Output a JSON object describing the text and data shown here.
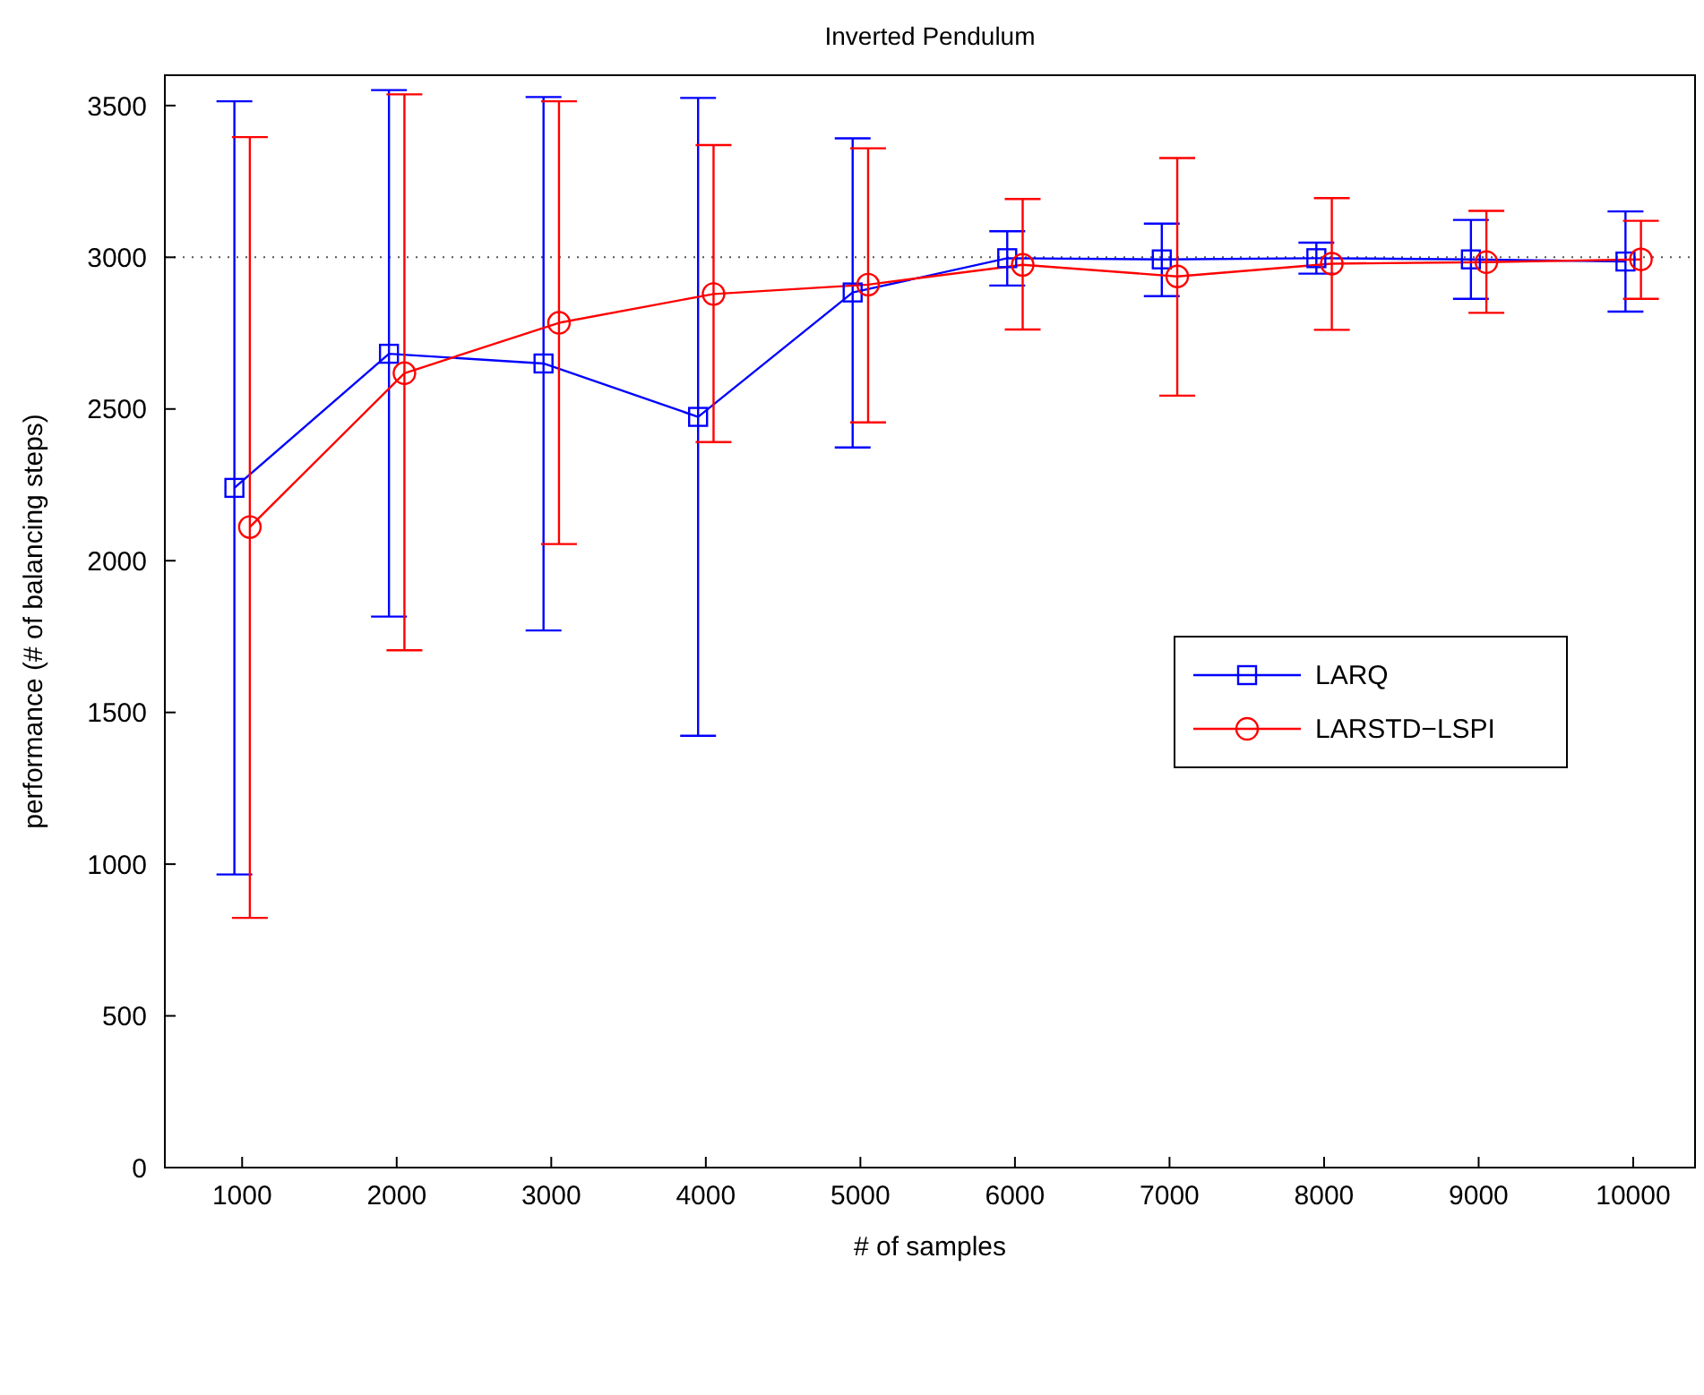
{
  "chart_data": {
    "type": "line",
    "title": "Inverted Pendulum",
    "xlabel": "# of samples",
    "ylabel": "performance (# of balancing steps)",
    "xlim": [
      500,
      10400
    ],
    "xticks": [
      1000,
      2000,
      3000,
      4000,
      5000,
      6000,
      7000,
      8000,
      9000,
      10000
    ],
    "ylim": [
      0,
      3600
    ],
    "yticks": [
      0,
      500,
      1000,
      1500,
      2000,
      2500,
      3000,
      3500
    ],
    "grid": false,
    "legend": "right",
    "line_style": "solid",
    "ref_lines": [
      {
        "axis": "y",
        "value": 3000,
        "color": "#555555",
        "line_style": "dotted"
      }
    ],
    "series": [
      {
        "name": "LARQ",
        "color": "#0000ff",
        "marker": "square",
        "x": [
          950,
          1950,
          2950,
          3950,
          4950,
          5950,
          6950,
          7950,
          8950,
          9950
        ],
        "values": [
          2240,
          2682,
          2650,
          2474,
          2884,
          2997,
          2993,
          2997,
          2993,
          2986
        ],
        "errors": [
          [
            966,
            3514
          ],
          [
            1816,
            3551
          ],
          [
            1770,
            3528
          ],
          [
            1423,
            3525
          ],
          [
            2373,
            3392
          ],
          [
            2907,
            3086
          ],
          [
            2872,
            3111
          ],
          [
            2946,
            3048
          ],
          [
            2863,
            3123
          ],
          [
            2821,
            3151
          ]
        ]
      },
      {
        "name": "LARSTD−LSPI",
        "color": "#ff0000",
        "marker": "circle",
        "x": [
          1050,
          2050,
          3050,
          4050,
          5050,
          6050,
          7050,
          8050,
          9050,
          10050
        ],
        "values": [
          2111,
          2618,
          2784,
          2879,
          2910,
          2975,
          2937,
          2979,
          2984,
          2993
        ],
        "errors": [
          [
            823,
            3396
          ],
          [
            1705,
            3537
          ],
          [
            2055,
            3514
          ],
          [
            2391,
            3370
          ],
          [
            2456,
            3359
          ],
          [
            2762,
            3192
          ],
          [
            2544,
            3327
          ],
          [
            2761,
            3195
          ],
          [
            2817,
            3153
          ],
          [
            2863,
            3120
          ]
        ]
      }
    ]
  }
}
